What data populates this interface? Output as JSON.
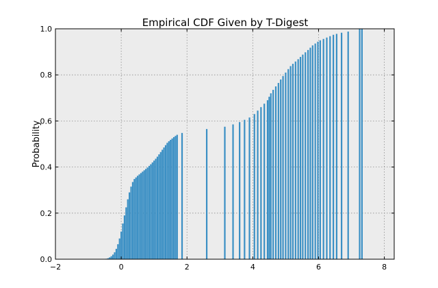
{
  "chart_data": {
    "type": "bar",
    "title": "Empirical CDF Given by T-Digest",
    "xlabel": "",
    "ylabel": "Probability",
    "xlim": [
      -2,
      8.3
    ],
    "ylim": [
      0,
      1.0
    ],
    "xticks": [
      "−2",
      "0",
      "2",
      "4",
      "6",
      "8"
    ],
    "xtick_values": [
      -2,
      0,
      2,
      4,
      6,
      8
    ],
    "yticks": [
      "0.0",
      "0.2",
      "0.4",
      "0.6",
      "0.8",
      "1.0"
    ],
    "ytick_values": [
      0,
      0.2,
      0.4,
      0.6,
      0.8,
      1.0
    ],
    "grid": true,
    "bar_color": "#3a8fc4",
    "background_color": "#ececec",
    "points": [
      {
        "x": -0.5,
        "y": 0.001
      },
      {
        "x": -0.45,
        "y": 0.002
      },
      {
        "x": -0.4,
        "y": 0.004
      },
      {
        "x": -0.35,
        "y": 0.008
      },
      {
        "x": -0.3,
        "y": 0.013
      },
      {
        "x": -0.25,
        "y": 0.02
      },
      {
        "x": -0.2,
        "y": 0.03
      },
      {
        "x": -0.15,
        "y": 0.045
      },
      {
        "x": -0.1,
        "y": 0.065
      },
      {
        "x": -0.05,
        "y": 0.09
      },
      {
        "x": 0.0,
        "y": 0.12
      },
      {
        "x": 0.05,
        "y": 0.155
      },
      {
        "x": 0.1,
        "y": 0.19
      },
      {
        "x": 0.15,
        "y": 0.225
      },
      {
        "x": 0.2,
        "y": 0.26
      },
      {
        "x": 0.25,
        "y": 0.29
      },
      {
        "x": 0.3,
        "y": 0.315
      },
      {
        "x": 0.35,
        "y": 0.335
      },
      {
        "x": 0.4,
        "y": 0.348
      },
      {
        "x": 0.45,
        "y": 0.355
      },
      {
        "x": 0.5,
        "y": 0.362
      },
      {
        "x": 0.55,
        "y": 0.368
      },
      {
        "x": 0.6,
        "y": 0.374
      },
      {
        "x": 0.65,
        "y": 0.38
      },
      {
        "x": 0.7,
        "y": 0.386
      },
      {
        "x": 0.75,
        "y": 0.392
      },
      {
        "x": 0.8,
        "y": 0.398
      },
      {
        "x": 0.85,
        "y": 0.405
      },
      {
        "x": 0.9,
        "y": 0.412
      },
      {
        "x": 0.95,
        "y": 0.42
      },
      {
        "x": 1.0,
        "y": 0.428
      },
      {
        "x": 1.05,
        "y": 0.436
      },
      {
        "x": 1.1,
        "y": 0.445
      },
      {
        "x": 1.15,
        "y": 0.455
      },
      {
        "x": 1.2,
        "y": 0.465
      },
      {
        "x": 1.25,
        "y": 0.475
      },
      {
        "x": 1.3,
        "y": 0.485
      },
      {
        "x": 1.35,
        "y": 0.495
      },
      {
        "x": 1.4,
        "y": 0.505
      },
      {
        "x": 1.45,
        "y": 0.512
      },
      {
        "x": 1.5,
        "y": 0.518
      },
      {
        "x": 1.55,
        "y": 0.524
      },
      {
        "x": 1.6,
        "y": 0.53
      },
      {
        "x": 1.65,
        "y": 0.535
      },
      {
        "x": 1.7,
        "y": 0.54
      },
      {
        "x": 1.85,
        "y": 0.548
      },
      {
        "x": 2.6,
        "y": 0.565
      },
      {
        "x": 3.15,
        "y": 0.575
      },
      {
        "x": 3.4,
        "y": 0.585
      },
      {
        "x": 3.6,
        "y": 0.595
      },
      {
        "x": 3.75,
        "y": 0.605
      },
      {
        "x": 3.9,
        "y": 0.615
      },
      {
        "x": 4.05,
        "y": 0.63
      },
      {
        "x": 4.15,
        "y": 0.645
      },
      {
        "x": 4.25,
        "y": 0.66
      },
      {
        "x": 4.35,
        "y": 0.675
      },
      {
        "x": 4.45,
        "y": 0.69
      },
      {
        "x": 4.5,
        "y": 0.705
      },
      {
        "x": 4.55,
        "y": 0.72
      },
      {
        "x": 4.62,
        "y": 0.735
      },
      {
        "x": 4.7,
        "y": 0.75
      },
      {
        "x": 4.78,
        "y": 0.765
      },
      {
        "x": 4.85,
        "y": 0.78
      },
      {
        "x": 4.92,
        "y": 0.795
      },
      {
        "x": 5.0,
        "y": 0.81
      },
      {
        "x": 5.08,
        "y": 0.825
      },
      {
        "x": 5.15,
        "y": 0.838
      },
      {
        "x": 5.22,
        "y": 0.848
      },
      {
        "x": 5.3,
        "y": 0.858
      },
      {
        "x": 5.38,
        "y": 0.868
      },
      {
        "x": 5.45,
        "y": 0.878
      },
      {
        "x": 5.52,
        "y": 0.888
      },
      {
        "x": 5.6,
        "y": 0.898
      },
      {
        "x": 5.68,
        "y": 0.908
      },
      {
        "x": 5.75,
        "y": 0.918
      },
      {
        "x": 5.82,
        "y": 0.928
      },
      {
        "x": 5.9,
        "y": 0.936
      },
      {
        "x": 5.98,
        "y": 0.944
      },
      {
        "x": 6.05,
        "y": 0.95
      },
      {
        "x": 6.15,
        "y": 0.956
      },
      {
        "x": 6.25,
        "y": 0.962
      },
      {
        "x": 6.35,
        "y": 0.968
      },
      {
        "x": 6.45,
        "y": 0.974
      },
      {
        "x": 6.55,
        "y": 0.978
      },
      {
        "x": 6.7,
        "y": 0.983
      },
      {
        "x": 6.9,
        "y": 0.988
      },
      {
        "x": 7.25,
        "y": 1.0
      },
      {
        "x": 7.32,
        "y": 1.0
      }
    ]
  }
}
